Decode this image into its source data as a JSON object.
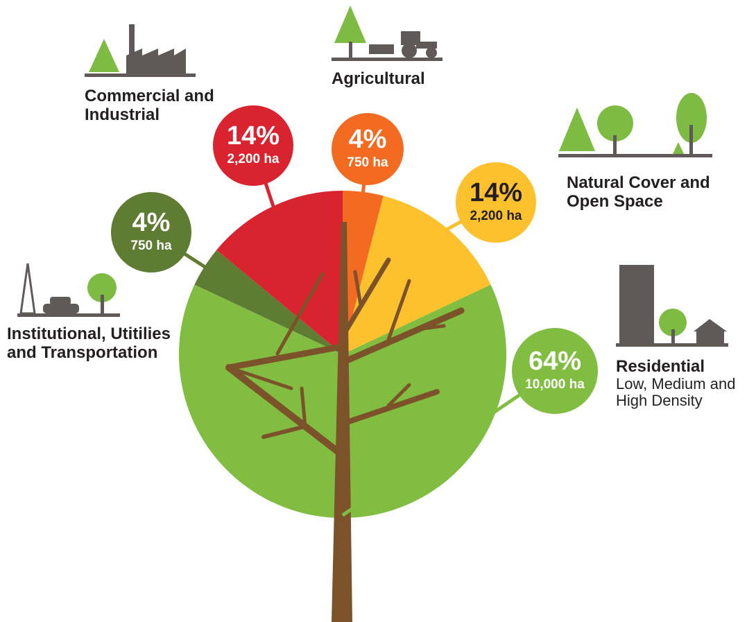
{
  "chart_data": {
    "type": "pie",
    "categories": [
      "Agricultural",
      "Natural Cover and Open Space",
      "Residential",
      "Institutional, Utitilies and Transportation",
      "Commercial and Industrial"
    ],
    "values": [
      4,
      14,
      64,
      4,
      14
    ],
    "value_labels": [
      "4%",
      "14%",
      "64%",
      "4%",
      "14%"
    ],
    "areas": [
      "750 ha",
      "2,200 ha",
      "10,000 ha",
      "750 ha",
      "2,200 ha"
    ],
    "colors": [
      "#f26b21",
      "#fdc12e",
      "#80bd41",
      "#5e7c32",
      "#d9242f"
    ],
    "annotation": "Low, Medium and High Density"
  }
}
